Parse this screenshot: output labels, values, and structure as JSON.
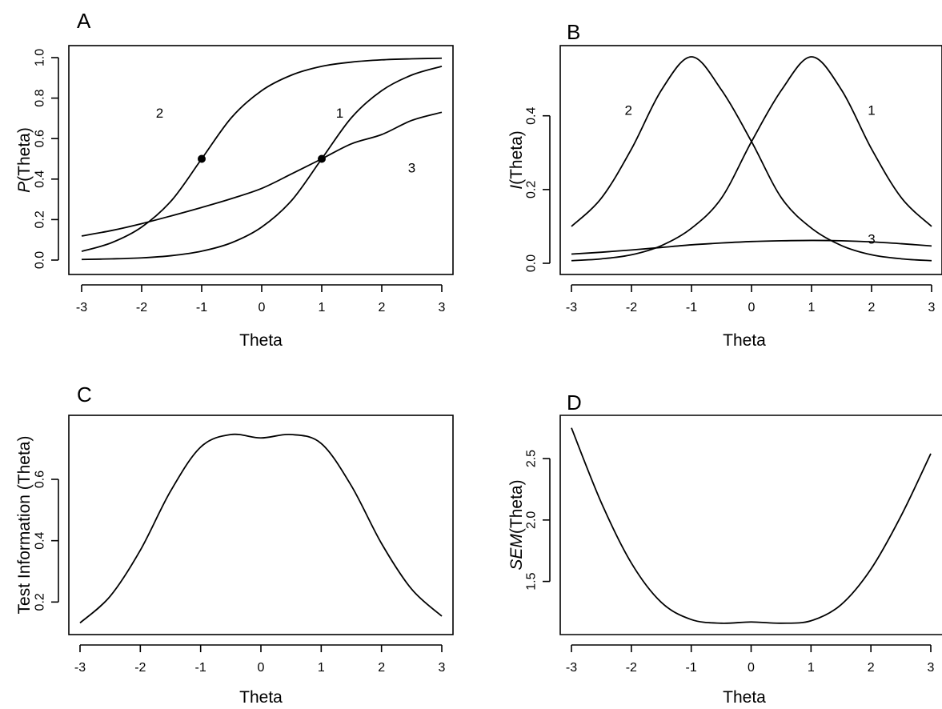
{
  "chart_data": [
    {
      "panel": "A",
      "type": "line",
      "title": "",
      "xlabel": "Theta",
      "ylabel_italic": "P",
      "ylabel_rest": "(Theta)",
      "xlim": [
        -3,
        3
      ],
      "ylim": [
        0,
        1
      ],
      "xticks": [
        -3,
        -2,
        -1,
        0,
        1,
        2,
        3
      ],
      "xtick_labels": [
        "-3",
        "-2",
        "-1",
        "0",
        "1",
        "2",
        "3"
      ],
      "yticks": [
        0,
        0.2,
        0.4,
        0.6,
        0.8,
        1.0
      ],
      "ytick_labels": [
        "0.0",
        "0.2",
        "0.4",
        "0.6",
        "0.8",
        "1.0"
      ],
      "grid": false,
      "series": [
        {
          "name": "1",
          "x": [
            -3,
            -2.5,
            -2,
            -1.5,
            -1,
            -0.5,
            0,
            0.5,
            1,
            1.5,
            2,
            2.5,
            3
          ],
          "y": [
            0.003,
            0.006,
            0.011,
            0.022,
            0.044,
            0.086,
            0.163,
            0.295,
            0.5,
            0.705,
            0.837,
            0.914,
            0.957
          ]
        },
        {
          "name": "2",
          "x": [
            -3,
            -2.5,
            -2,
            -1.5,
            -1,
            -0.5,
            0,
            0.5,
            1,
            1.5,
            2,
            2.5,
            3
          ],
          "y": [
            0.043,
            0.086,
            0.163,
            0.295,
            0.5,
            0.705,
            0.837,
            0.914,
            0.957,
            0.978,
            0.989,
            0.994,
            0.997
          ]
        },
        {
          "name": "3",
          "x": [
            -3,
            -2.5,
            -2,
            -1.5,
            -1,
            -0.5,
            0,
            0.5,
            1,
            1.5,
            2,
            2.5,
            3
          ],
          "y": [
            0.119,
            0.146,
            0.18,
            0.219,
            0.26,
            0.304,
            0.354,
            0.426,
            0.5,
            0.575,
            0.62,
            0.69,
            0.73
          ]
        }
      ],
      "points": [
        {
          "x": -1,
          "y": 0.5
        },
        {
          "x": 1,
          "y": 0.5
        }
      ],
      "curve_labels": [
        {
          "text": "2",
          "x": -1.7,
          "y": 0.725
        },
        {
          "text": "1",
          "x": 1.3,
          "y": 0.725
        },
        {
          "text": "3",
          "x": 2.5,
          "y": 0.455
        }
      ]
    },
    {
      "panel": "B",
      "type": "line",
      "title": "",
      "xlabel": "Theta",
      "ylabel_italic": "I",
      "ylabel_rest": "(Theta)",
      "xlim": [
        -3,
        3
      ],
      "ylim": [
        0,
        0.56
      ],
      "xticks": [
        -3,
        -2,
        -1,
        0,
        1,
        2,
        3
      ],
      "xtick_labels": [
        "-3",
        "-2",
        "-1",
        "0",
        "1",
        "2",
        "3"
      ],
      "yticks": [
        0,
        0.2,
        0.4
      ],
      "ytick_labels": [
        "0.0",
        "0.2",
        "0.4"
      ],
      "grid": false,
      "series": [
        {
          "name": "1",
          "x": [
            -3,
            -2.5,
            -2,
            -1.5,
            -1,
            -0.5,
            0,
            0.5,
            1,
            1.5,
            2,
            2.5,
            3
          ],
          "y": [
            0.007,
            0.012,
            0.023,
            0.048,
            0.095,
            0.177,
            0.33,
            0.47,
            0.56,
            0.47,
            0.31,
            0.177,
            0.1
          ]
        },
        {
          "name": "2",
          "x": [
            -3,
            -2.5,
            -2,
            -1.5,
            -1,
            -0.5,
            0,
            0.5,
            1,
            1.5,
            2,
            2.5,
            3
          ],
          "y": [
            0.1,
            0.177,
            0.31,
            0.47,
            0.56,
            0.47,
            0.33,
            0.177,
            0.095,
            0.048,
            0.023,
            0.012,
            0.007
          ]
        },
        {
          "name": "3",
          "x": [
            -3,
            -2.5,
            -2,
            -1.5,
            -1,
            -0.5,
            0,
            0.5,
            1,
            1.5,
            2,
            2.5,
            3
          ],
          "y": [
            0.025,
            0.03,
            0.036,
            0.043,
            0.05,
            0.055,
            0.059,
            0.061,
            0.062,
            0.061,
            0.058,
            0.053,
            0.047
          ]
        }
      ],
      "points": [],
      "curve_labels": [
        {
          "text": "2",
          "x": -2.05,
          "y": 0.415
        },
        {
          "text": "1",
          "x": 2.0,
          "y": 0.415
        },
        {
          "text": "3",
          "x": 2.0,
          "y": 0.065
        }
      ]
    },
    {
      "panel": "C",
      "type": "line",
      "title": "",
      "xlabel": "Theta",
      "ylabel_italic": "",
      "ylabel_rest": "Test Information (Theta)",
      "xlim": [
        -3,
        3
      ],
      "ylim": [
        0.12,
        0.78
      ],
      "xticks": [
        -3,
        -2,
        -1,
        0,
        1,
        2,
        3
      ],
      "xtick_labels": [
        "-3",
        "-2",
        "-1",
        "0",
        "1",
        "2",
        "3"
      ],
      "yticks": [
        0.2,
        0.4,
        0.6
      ],
      "ytick_labels": [
        "0.2",
        "0.4",
        "0.6"
      ],
      "grid": false,
      "series": [
        {
          "name": "",
          "x": [
            -3,
            -2.5,
            -2,
            -1.5,
            -1,
            -0.5,
            0,
            0.5,
            1,
            1.5,
            2,
            2.5,
            3
          ],
          "y": [
            0.132,
            0.219,
            0.369,
            0.561,
            0.705,
            0.746,
            0.735,
            0.746,
            0.717,
            0.579,
            0.391,
            0.242,
            0.154
          ]
        }
      ],
      "points": [],
      "curve_labels": []
    },
    {
      "panel": "D",
      "type": "line",
      "title": "",
      "xlabel": "Theta",
      "ylabel_italic": "SEM",
      "ylabel_rest": "(Theta)",
      "xlim": [
        -3,
        3
      ],
      "ylim": [
        1.1,
        2.8
      ],
      "xticks": [
        -3,
        -2,
        -1,
        0,
        1,
        2,
        3
      ],
      "xtick_labels": [
        "-3",
        "-2",
        "-1",
        "0",
        "1",
        "2",
        "3"
      ],
      "yticks": [
        1.5,
        2.0,
        2.5
      ],
      "ytick_labels": [
        "1.5",
        "2.0",
        "2.5"
      ],
      "grid": false,
      "series": [
        {
          "name": "",
          "x": [
            -3,
            -2.5,
            -2,
            -1.5,
            -1,
            -0.5,
            0,
            0.5,
            1,
            1.5,
            2,
            2.5,
            3
          ],
          "y": [
            2.75,
            2.14,
            1.65,
            1.33,
            1.19,
            1.16,
            1.17,
            1.16,
            1.18,
            1.31,
            1.6,
            2.03,
            2.54
          ]
        }
      ],
      "points": [],
      "curve_labels": []
    }
  ]
}
